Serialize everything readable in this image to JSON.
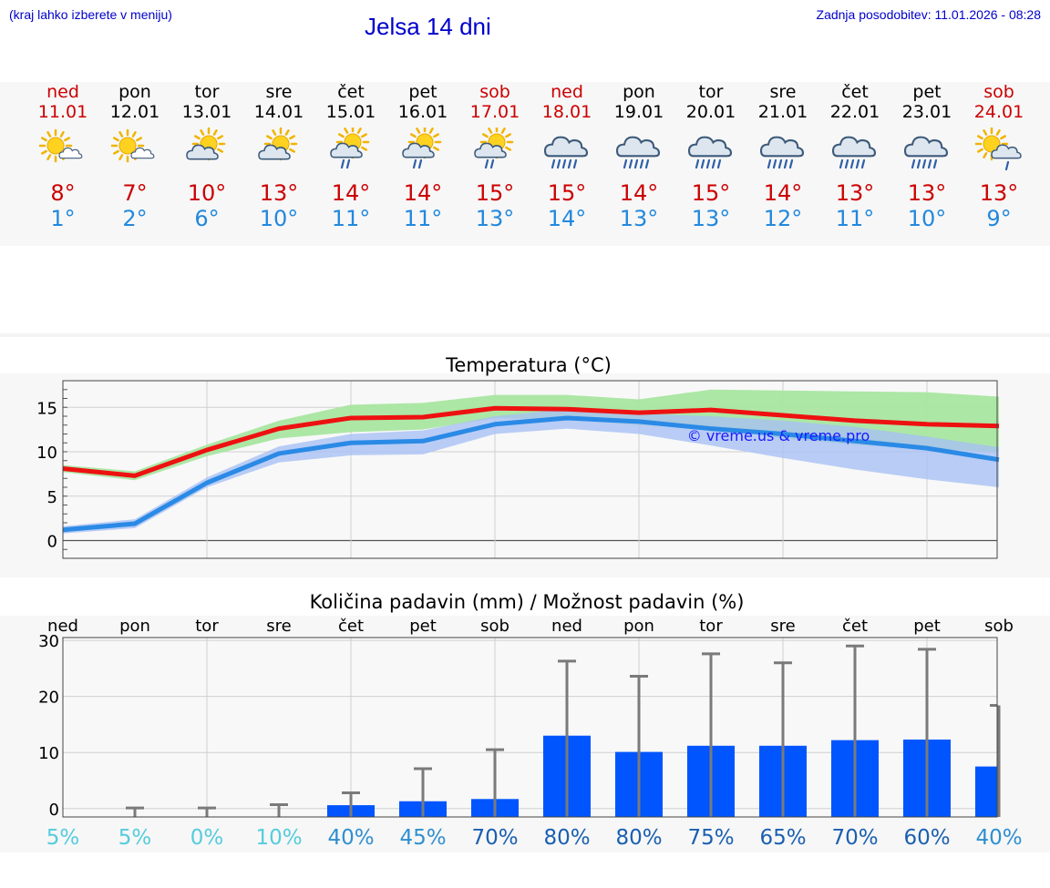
{
  "header": {
    "hint": "(kraj lahko izberete v meniju)",
    "title": "Jelsa 14 dni",
    "updated": "Zadnja posodobitev: 11.01.2026 - 08:28"
  },
  "days": [
    {
      "name": "ned",
      "date": "11.01",
      "max": "8°",
      "min": "1°",
      "icon": "sun-cloud-icon",
      "weekend": true
    },
    {
      "name": "pon",
      "date": "12.01",
      "max": "7°",
      "min": "2°",
      "icon": "sun-cloud-icon",
      "weekend": false
    },
    {
      "name": "tor",
      "date": "13.01",
      "max": "10°",
      "min": "6°",
      "icon": "partly-cloudy-icon",
      "weekend": false
    },
    {
      "name": "sre",
      "date": "14.01",
      "max": "13°",
      "min": "10°",
      "icon": "partly-cloudy-icon",
      "weekend": false
    },
    {
      "name": "čet",
      "date": "15.01",
      "max": "14°",
      "min": "11°",
      "icon": "sun-rain-icon",
      "weekend": false
    },
    {
      "name": "pet",
      "date": "16.01",
      "max": "14°",
      "min": "11°",
      "icon": "sun-rain-icon",
      "weekend": false
    },
    {
      "name": "sob",
      "date": "17.01",
      "max": "15°",
      "min": "13°",
      "icon": "sun-rain-icon",
      "weekend": true
    },
    {
      "name": "ned",
      "date": "18.01",
      "max": "15°",
      "min": "14°",
      "icon": "heavy-rain-icon",
      "weekend": true
    },
    {
      "name": "pon",
      "date": "19.01",
      "max": "14°",
      "min": "13°",
      "icon": "heavy-rain-icon",
      "weekend": false
    },
    {
      "name": "tor",
      "date": "20.01",
      "max": "15°",
      "min": "13°",
      "icon": "heavy-rain-icon",
      "weekend": false
    },
    {
      "name": "sre",
      "date": "21.01",
      "max": "14°",
      "min": "12°",
      "icon": "heavy-rain-icon",
      "weekend": false
    },
    {
      "name": "čet",
      "date": "22.01",
      "max": "13°",
      "min": "11°",
      "icon": "heavy-rain-icon",
      "weekend": false
    },
    {
      "name": "pet",
      "date": "23.01",
      "max": "13°",
      "min": "10°",
      "icon": "heavy-rain-icon",
      "weekend": false
    },
    {
      "name": "sob",
      "date": "24.01",
      "max": "13°",
      "min": "9°",
      "icon": "sun-light-rain-icon",
      "weekend": true
    }
  ],
  "colors": {
    "max": "#ee1111",
    "min": "#2a8ae6",
    "max_band": "#a8e6a0",
    "min_band": "#a8c0f4",
    "bar": "#0055ff",
    "whisker": "#7a7a7a"
  },
  "chart_data": [
    {
      "type": "line",
      "title": "Temperatura (°C)",
      "watermark": "© vreme.us & vreme.pro",
      "ylim": [
        -2,
        18
      ],
      "yticks": [
        "0",
        "5",
        "10",
        "15"
      ],
      "x": [
        0,
        1,
        2,
        3,
        4,
        5,
        6,
        7,
        8,
        9,
        10,
        11,
        12,
        13
      ],
      "series": [
        {
          "name": "max",
          "values": [
            8.1,
            7.3,
            10.2,
            12.6,
            13.8,
            13.9,
            14.9,
            14.8,
            14.4,
            14.7,
            14.1,
            13.5,
            13.1,
            12.9
          ],
          "band_low": [
            7.7,
            6.8,
            9.5,
            11.5,
            12.2,
            12.5,
            13.8,
            13.6,
            13.0,
            12.7,
            11.5,
            10.8,
            10.3,
            10.0
          ],
          "band_high": [
            8.5,
            7.8,
            10.8,
            13.5,
            15.3,
            15.5,
            16.4,
            16.4,
            15.9,
            17.0,
            16.9,
            16.8,
            16.7,
            16.2
          ]
        },
        {
          "name": "min",
          "values": [
            1.2,
            1.9,
            6.5,
            9.8,
            11.0,
            11.2,
            13.1,
            13.8,
            13.4,
            12.6,
            12.0,
            11.2,
            10.4,
            9.1
          ],
          "band_low": [
            0.8,
            1.4,
            6.0,
            8.8,
            9.6,
            9.7,
            12.0,
            12.6,
            12.0,
            10.7,
            9.3,
            8.0,
            6.9,
            6.0
          ],
          "band_high": [
            1.6,
            2.4,
            7.1,
            10.6,
            12.0,
            12.4,
            14.0,
            14.8,
            14.3,
            14.0,
            13.5,
            12.8,
            11.7,
            10.5
          ]
        }
      ]
    },
    {
      "type": "bar",
      "title": "Količina padavin (mm) / Možnost padavin (%)",
      "categories": [
        "ned",
        "pon",
        "tor",
        "sre",
        "čet",
        "pet",
        "sob",
        "ned",
        "pon",
        "tor",
        "sre",
        "čet",
        "pet",
        "sob"
      ],
      "ylim": [
        -1.5,
        30.5
      ],
      "yticks": [
        "0",
        "10",
        "20",
        "30"
      ],
      "values": [
        0,
        0,
        0,
        0,
        0.6,
        1.3,
        1.7,
        13.0,
        10.1,
        11.2,
        11.2,
        12.2,
        12.3,
        7.5
      ],
      "max_values": [
        0,
        0.1,
        0.1,
        0.7,
        2.8,
        7.1,
        10.5,
        26.3,
        23.6,
        27.6,
        26.0,
        29.0,
        28.4,
        18.4
      ],
      "probabilities": [
        "5%",
        "5%",
        "0%",
        "10%",
        "40%",
        "45%",
        "70%",
        "80%",
        "80%",
        "75%",
        "65%",
        "70%",
        "60%",
        "40%"
      ]
    }
  ]
}
